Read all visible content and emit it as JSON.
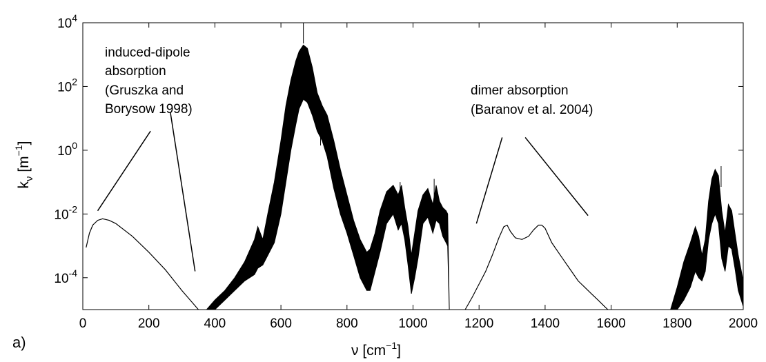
{
  "chart_data": {
    "type": "line",
    "panel_label": "a)",
    "xlabel": {
      "base": "ν [cm",
      "sup": "−1",
      "close": "]"
    },
    "ylabel": {
      "base": "k",
      "sub": "ν",
      "unit": " [m",
      "sup": "−1",
      "close": "]"
    },
    "xlim": [
      0,
      2000
    ],
    "ylim_log10": [
      -5,
      4
    ],
    "y_scale": "log",
    "grid": false,
    "x_ticks": [
      0,
      200,
      400,
      600,
      800,
      1000,
      1200,
      1400,
      1600,
      1800,
      2000
    ],
    "x_tick_labels": [
      "0",
      "200",
      "400",
      "600",
      "800",
      "1000",
      "1200",
      "1400",
      "1600",
      "1800",
      "2000"
    ],
    "y_tick_exponents": [
      -4,
      -2,
      0,
      2,
      4
    ],
    "y_tick_labels": [
      {
        "base": "10",
        "exp": "-4"
      },
      {
        "base": "10",
        "exp": "-2"
      },
      {
        "base": "10",
        "exp": "0"
      },
      {
        "base": "10",
        "exp": "2"
      },
      {
        "base": "10",
        "exp": "4"
      }
    ],
    "annotations": {
      "induced_dipole": [
        "induced-dipole",
        "absorption",
        "(Gruszka and",
        "Borysow 1998)"
      ],
      "dimer": [
        "dimer absorption",
        "(Baranov et al. 2004)"
      ]
    },
    "series": [
      {
        "segment": "induced-dipole continuum",
        "x": [
          10,
          20,
          30,
          45,
          60,
          80,
          100,
          150,
          200,
          250,
          300,
          350
        ],
        "log10_y": [
          -3.05,
          -2.6,
          -2.35,
          -2.2,
          -2.15,
          -2.2,
          -2.3,
          -2.7,
          -3.2,
          -3.75,
          -4.4,
          -5.0
        ]
      },
      {
        "segment": "CO2 band 400-1120 cm-1 (upper envelope)",
        "x": [
          375,
          400,
          430,
          460,
          490,
          520,
          530,
          545,
          560,
          580,
          600,
          615,
          630,
          645,
          655,
          668,
          680,
          695,
          710,
          725,
          740,
          760,
          780,
          800,
          820,
          840,
          860,
          870,
          885,
          900,
          920,
          940,
          955,
          965,
          975,
          985,
          995,
          1005,
          1015,
          1030,
          1045,
          1060,
          1070,
          1080,
          1090,
          1100,
          1105
        ],
        "log10_y": [
          -5.0,
          -4.7,
          -4.4,
          -4.0,
          -3.5,
          -2.8,
          -2.4,
          -2.8,
          -2.0,
          -1.0,
          0.3,
          1.4,
          2.2,
          2.8,
          3.1,
          3.3,
          3.2,
          2.6,
          1.8,
          1.4,
          1.1,
          0.3,
          -0.6,
          -1.4,
          -2.2,
          -2.8,
          -3.2,
          -3.1,
          -2.6,
          -1.9,
          -1.3,
          -1.1,
          -1.4,
          -1.1,
          -1.8,
          -2.4,
          -3.3,
          -2.6,
          -1.9,
          -1.4,
          -1.2,
          -1.7,
          -1.1,
          -1.6,
          -1.8,
          -1.9,
          -2.0
        ]
      },
      {
        "segment": "CO2 band 400-1120 cm-1 (lower envelope)",
        "x": [
          1110,
          1105,
          1100,
          1090,
          1080,
          1070,
          1060,
          1045,
          1030,
          1015,
          1005,
          995,
          985,
          975,
          965,
          955,
          940,
          920,
          900,
          885,
          870,
          860,
          840,
          820,
          800,
          780,
          760,
          740,
          725,
          710,
          695,
          680,
          668,
          655,
          645,
          630,
          615,
          600,
          580,
          560,
          545,
          530,
          520,
          490,
          460,
          430,
          400,
          375
        ],
        "log10_y": [
          -5.0,
          -3.0,
          -2.9,
          -2.7,
          -2.3,
          -2.2,
          -2.6,
          -2.1,
          -2.3,
          -3.4,
          -4.0,
          -4.5,
          -3.6,
          -2.8,
          -2.3,
          -2.5,
          -2.0,
          -2.3,
          -3.2,
          -3.8,
          -4.4,
          -4.4,
          -4.0,
          -3.3,
          -2.6,
          -2.0,
          -1.2,
          -0.2,
          0.3,
          0.6,
          1.1,
          1.5,
          1.6,
          1.3,
          0.8,
          0.0,
          -1.0,
          -2.0,
          -2.9,
          -3.3,
          -3.6,
          -3.7,
          -3.9,
          -4.1,
          -4.4,
          -4.7,
          -5.0,
          -5.0
        ]
      },
      {
        "segment": "dimer absorption",
        "x": [
          1158,
          1180,
          1200,
          1220,
          1240,
          1260,
          1275,
          1285,
          1295,
          1310,
          1330,
          1350,
          1365,
          1380,
          1390,
          1400,
          1420,
          1440,
          1460,
          1480,
          1500,
          1520,
          1540,
          1560,
          1580,
          1590
        ],
        "log10_y": [
          -5.0,
          -4.6,
          -4.2,
          -3.8,
          -3.3,
          -2.75,
          -2.4,
          -2.35,
          -2.55,
          -2.75,
          -2.8,
          -2.7,
          -2.5,
          -2.35,
          -2.35,
          -2.45,
          -2.9,
          -3.2,
          -3.5,
          -3.8,
          -4.1,
          -4.3,
          -4.5,
          -4.7,
          -4.9,
          -5.0
        ]
      },
      {
        "segment": "CO2 band 1780-2000 cm-1 (upper envelope)",
        "x": [
          1780,
          1800,
          1820,
          1840,
          1855,
          1865,
          1875,
          1885,
          1895,
          1905,
          1915,
          1925,
          1935,
          1945,
          1955,
          1965,
          1975,
          1985,
          2000
        ],
        "log10_y": [
          -5.0,
          -4.3,
          -3.5,
          -2.9,
          -2.4,
          -2.7,
          -3.3,
          -2.8,
          -1.6,
          -0.9,
          -0.6,
          -0.8,
          -1.9,
          -2.6,
          -1.7,
          -1.9,
          -2.6,
          -3.3,
          -4.1
        ]
      },
      {
        "segment": "CO2 band 1780-2000 cm-1 (lower envelope)",
        "x": [
          2000,
          1985,
          1975,
          1965,
          1955,
          1945,
          1935,
          1925,
          1915,
          1905,
          1895,
          1885,
          1875,
          1865,
          1855,
          1840,
          1820,
          1800,
          1780
        ],
        "log10_y": [
          -4.9,
          -4.4,
          -3.7,
          -3.1,
          -3.0,
          -3.8,
          -3.4,
          -2.3,
          -2.0,
          -2.3,
          -2.8,
          -3.8,
          -4.1,
          -4.0,
          -3.8,
          -4.3,
          -4.7,
          -5.0,
          -5.0
        ]
      }
    ],
    "sharp_lines": [
      {
        "x": 668,
        "log10_y": 4.0
      },
      {
        "x": 618,
        "log10_y": 1.0
      },
      {
        "x": 720,
        "log10_y": 0.8
      },
      {
        "x": 961,
        "log10_y": -1.0
      },
      {
        "x": 1064,
        "log10_y": -0.9
      },
      {
        "x": 1933,
        "log10_y": -0.5
      }
    ],
    "pointer_lines": [
      {
        "x": [
          45,
          205
        ],
        "log10_y": [
          -1.9,
          0.6
        ]
      },
      {
        "x": [
          265,
          340
        ],
        "log10_y": [
          1.2,
          -3.8
        ]
      },
      {
        "x": [
          1192,
          1270
        ],
        "log10_y": [
          -2.3,
          0.4
        ]
      },
      {
        "x": [
          1340,
          1530
        ],
        "log10_y": [
          0.4,
          -2.05
        ]
      }
    ]
  }
}
